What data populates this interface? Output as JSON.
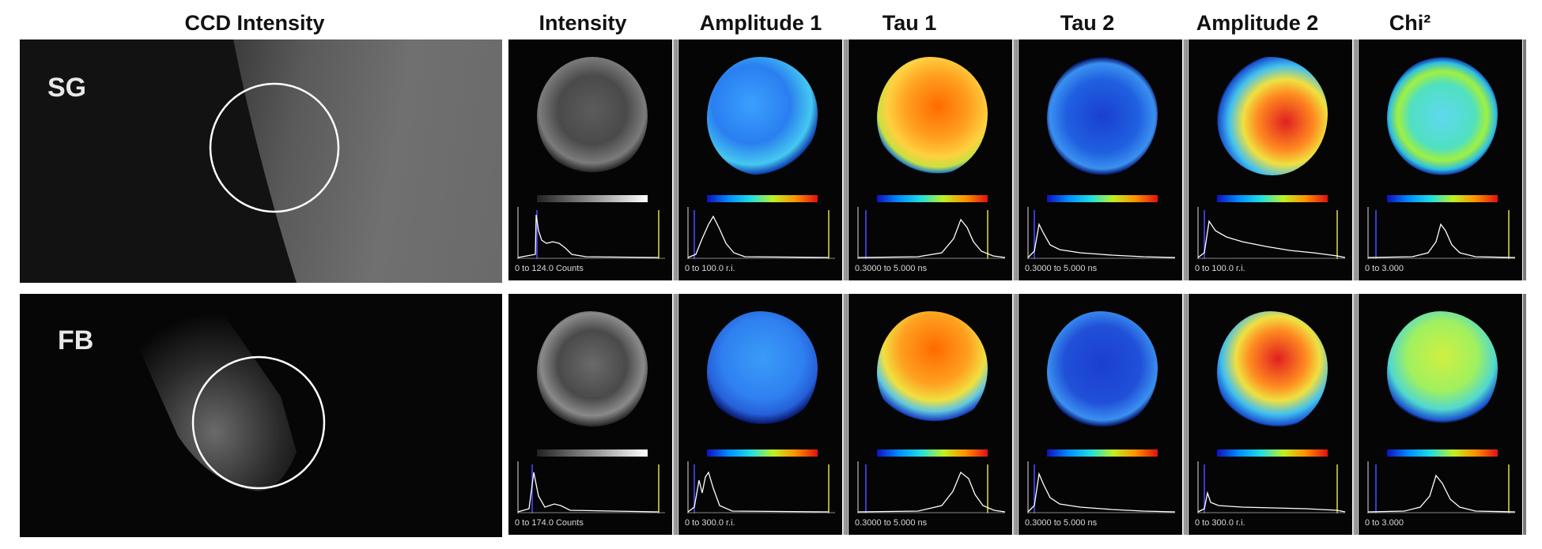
{
  "headers": {
    "ccd": "CCD Intensity",
    "intensity": "Intensity",
    "amp1": "Amplitude 1",
    "tau1": "Tau 1",
    "tau2": "Tau 2",
    "amp2": "Amplitude 2",
    "chi": "Chi²"
  },
  "rows": [
    {
      "label": "SG",
      "ranges": {
        "intensity": "0 to 124.0 Counts",
        "amp1": "0 to 100.0 r.i.",
        "tau1": "0.3000 to 5.000 ns",
        "tau2": "0.3000 to 5.000 ns",
        "amp2": "0 to 100.0 r.i.",
        "chi": "0 to 3.000"
      }
    },
    {
      "label": "FB",
      "ranges": {
        "intensity": "0 to 174.0 Counts",
        "amp1": "0 to 300.0 r.i.",
        "tau1": "0.3000 to 5.000 ns",
        "tau2": "0.3000 to 5.000 ns",
        "amp2": "0 to 300.0 r.i.",
        "chi": "0 to 3.000"
      }
    }
  ],
  "colors": {
    "background": "#ffffff",
    "panel": "#050505",
    "histogram_line": "#ffffff",
    "marker_blue": "#3a3ad0",
    "marker_olive": "#a8a838"
  }
}
